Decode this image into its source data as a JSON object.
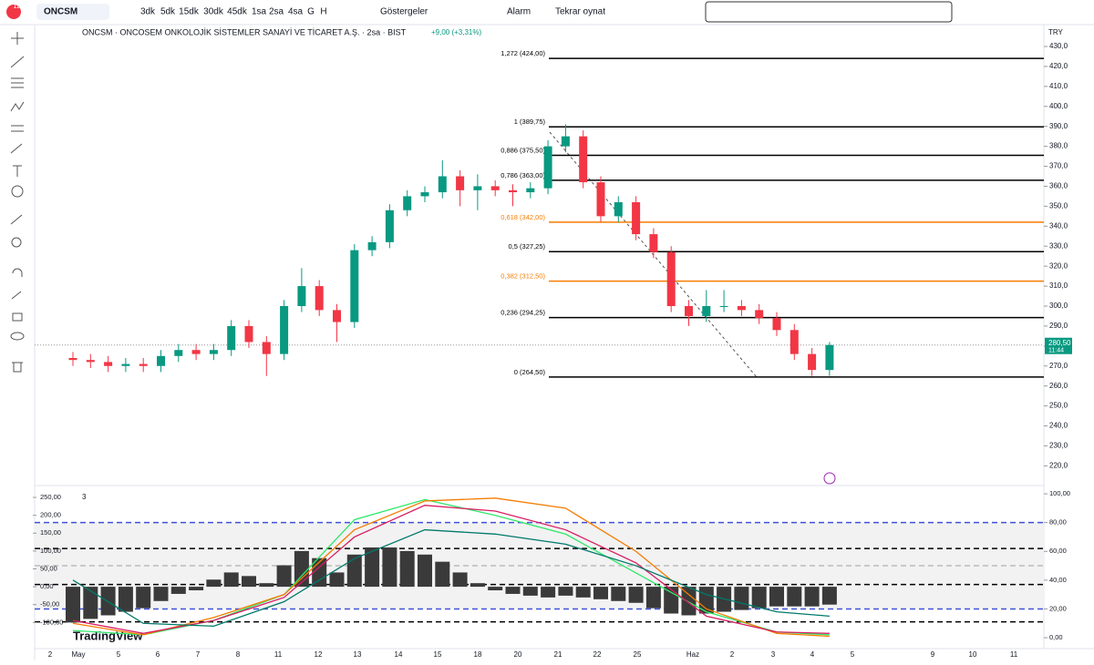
{
  "toolbar": {
    "symbol": "ONCSM",
    "badge": "11",
    "intervals": [
      "3dk",
      "5dk",
      "15dk",
      "30dk",
      "45dk",
      "1sa",
      "2sa",
      "4sa",
      "G",
      "H"
    ],
    "indicators": "Göstergeler",
    "alarm": "Alarm",
    "replay": "Tekrar oynat"
  },
  "legend": {
    "title": "ONCSM · ONCOSEM ONKOLOJİK SİSTEMLER SANAYİ VE TİCARET A.Ş. · 2sa · BIST",
    "change": "+9,00 (+3,31%)"
  },
  "brand": "TradingView",
  "chart_data": [
    {
      "type": "candlestick",
      "currency": "TRY",
      "up_color": "#089981",
      "down_color": "#f23645",
      "ohlc": [
        [
          274,
          277,
          270,
          273
        ],
        [
          273,
          276,
          269,
          272
        ],
        [
          272,
          275,
          267,
          270
        ],
        [
          270,
          274,
          267,
          271
        ],
        [
          271,
          274,
          267,
          270
        ],
        [
          270,
          278,
          267,
          275
        ],
        [
          275,
          281,
          272,
          278
        ],
        [
          278,
          281,
          273,
          276
        ],
        [
          276,
          281,
          273,
          278
        ],
        [
          278,
          293,
          275,
          290
        ],
        [
          290,
          293,
          279,
          282
        ],
        [
          282,
          285,
          265,
          276
        ],
        [
          276,
          303,
          273,
          300
        ],
        [
          300,
          319,
          297,
          310
        ],
        [
          310,
          313,
          295,
          298
        ],
        [
          298,
          301,
          282,
          292
        ],
        [
          292,
          331,
          289,
          328
        ],
        [
          328,
          335,
          325,
          332
        ],
        [
          332,
          351,
          329,
          348
        ],
        [
          348,
          358,
          345,
          355
        ],
        [
          355,
          360,
          352,
          357
        ],
        [
          357,
          373,
          354,
          365
        ],
        [
          365,
          368,
          350,
          358
        ],
        [
          358,
          366,
          348,
          360
        ],
        [
          360,
          363,
          355,
          358
        ],
        [
          358,
          361,
          350,
          357
        ],
        [
          357,
          362,
          354,
          359
        ],
        [
          359,
          383,
          356,
          380
        ],
        [
          380,
          391,
          377,
          385
        ],
        [
          385,
          388,
          359,
          362
        ],
        [
          362,
          365,
          342,
          345
        ],
        [
          345,
          355,
          342,
          352
        ],
        [
          352,
          355,
          333,
          336
        ],
        [
          336,
          339,
          324,
          327
        ],
        [
          327,
          330,
          297,
          300
        ],
        [
          300,
          303,
          290,
          295
        ],
        [
          295,
          308,
          292,
          300
        ],
        [
          300,
          308,
          297,
          300
        ],
        [
          300,
          303,
          295,
          298
        ],
        [
          298,
          301,
          291,
          294
        ],
        [
          294,
          297,
          285,
          288
        ],
        [
          288,
          291,
          273,
          276
        ],
        [
          276,
          279,
          265,
          268
        ],
        [
          268,
          282,
          265,
          280.5
        ]
      ],
      "ylim": [
        211.5,
        440.5
      ],
      "yticks": [
        {
          "value": 430,
          "label": "430,0"
        },
        {
          "value": 420,
          "label": "420,0"
        },
        {
          "value": 410,
          "label": "410,0"
        },
        {
          "value": 400,
          "label": "400,0"
        },
        {
          "value": 390,
          "label": "390,0"
        },
        {
          "value": 380,
          "label": "380,0"
        },
        {
          "value": 370,
          "label": "370,0"
        },
        {
          "value": 360,
          "label": "360,0"
        },
        {
          "value": 350,
          "label": "350,0"
        },
        {
          "value": 340,
          "label": "340,0"
        },
        {
          "value": 330,
          "label": "330,0"
        },
        {
          "value": 320,
          "label": "320,0"
        },
        {
          "value": 310,
          "label": "310,0"
        },
        {
          "value": 300,
          "label": "300,0"
        },
        {
          "value": 290,
          "label": "290,0"
        },
        {
          "value": 280,
          "label": "280,0"
        },
        {
          "value": 270,
          "label": "270,0"
        },
        {
          "value": 260,
          "label": "260,0"
        },
        {
          "value": 250,
          "label": "250,0"
        },
        {
          "value": 240,
          "label": "240,0"
        },
        {
          "value": 230,
          "label": "230,0"
        },
        {
          "value": 220,
          "label": "220,0"
        }
      ],
      "last_price": {
        "value": 280.5,
        "label": "280,50"
      },
      "countdown": "11:44",
      "fib_levels": [
        {
          "label": "1,272 (424,00)",
          "value": 424,
          "color": "#000000"
        },
        {
          "label": "1 (389,75)",
          "value": 389.75,
          "color": "#000000"
        },
        {
          "label": "0,886 (375,50)",
          "value": 375.5,
          "color": "#000000"
        },
        {
          "label": "0,786 (363,00)",
          "value": 363,
          "color": "#000000"
        },
        {
          "label": "0,618 (342,00)",
          "value": 342,
          "color": "#f57c00"
        },
        {
          "label": "0,5 (327,25)",
          "value": 327.25,
          "color": "#000000"
        },
        {
          "label": "0,382 (312,50)",
          "value": 312.5,
          "color": "#f57c00"
        },
        {
          "label": "0,236 (294,25)",
          "value": 294.25,
          "color": "#000000"
        },
        {
          "label": "0 (264,50)",
          "value": 264.5,
          "color": "#000000"
        }
      ],
      "x_labels": [
        "2",
        "May",
        "5",
        "6",
        "7",
        "8",
        "11",
        "12",
        "13",
        "14",
        "15",
        "18",
        "20",
        "21",
        "22",
        "25",
        "Haz",
        "2",
        "3",
        "4",
        "5",
        "9",
        "10",
        "11"
      ]
    },
    {
      "type": "histogram-line",
      "indicator_count": "3",
      "histogram": {
        "color": "#3a3a3a",
        "values": [
          -100,
          -90,
          -80,
          -70,
          -60,
          -40,
          -20,
          -10,
          20,
          40,
          30,
          10,
          60,
          100,
          80,
          40,
          90,
          110,
          110,
          100,
          90,
          70,
          40,
          10,
          -10,
          -20,
          -25,
          -30,
          -25,
          -30,
          -35,
          -40,
          -45,
          -60,
          -75,
          -80,
          -75,
          -70,
          -65,
          -60,
          -55,
          -55,
          -55,
          -50
        ]
      },
      "ylim": [
        -168,
        273
      ],
      "yticks": [
        {
          "value": 250,
          "label": "250,00"
        },
        {
          "value": 200,
          "label": "200,00"
        },
        {
          "value": 150,
          "label": "150,00"
        },
        {
          "value": 100,
          "label": "100,00"
        },
        {
          "value": 50,
          "label": "50,00"
        },
        {
          "value": 0,
          "label": "0,00"
        },
        {
          "value": -50,
          "label": "-50,00"
        },
        {
          "value": -100,
          "label": "-100,00"
        }
      ],
      "y2lim": [
        -6.3,
        103.2
      ],
      "y2ticks": [
        {
          "value": 100,
          "label": "100,00"
        },
        {
          "value": 80,
          "label": "80,00"
        },
        {
          "value": 60,
          "label": "60,00"
        },
        {
          "value": 40,
          "label": "40,00"
        },
        {
          "value": 20,
          "label": "20,00"
        },
        {
          "value": 0,
          "label": "0,00"
        }
      ],
      "levels": [
        {
          "value": 80,
          "color": "#3f51d8"
        },
        {
          "value": 62,
          "color": "#000000"
        },
        {
          "value": 50,
          "color": "#bbbbbb"
        },
        {
          "value": 37,
          "color": "#000000"
        },
        {
          "value": 20,
          "color": "#3f51d8"
        },
        {
          "value": 11,
          "color": "#000000"
        }
      ],
      "x": [
        0,
        4,
        8,
        12,
        16,
        20,
        24,
        28,
        32,
        36,
        40,
        43
      ],
      "series": [
        {
          "color": "#2ee86a",
          "axis": "y2",
          "values": [
            5,
            2,
            12,
            30,
            82,
            96,
            85,
            72,
            45,
            18,
            4,
            2
          ]
        },
        {
          "color": "#f57c00",
          "axis": "y2",
          "values": [
            10,
            2,
            14,
            30,
            75,
            95,
            97,
            90,
            60,
            20,
            3,
            1
          ]
        },
        {
          "color": "#d81b60",
          "axis": "y2",
          "values": [
            12,
            3,
            12,
            28,
            70,
            92,
            88,
            75,
            52,
            15,
            4,
            3
          ]
        },
        {
          "color": "#00796b",
          "axis": "y2",
          "values": [
            40,
            10,
            8,
            25,
            55,
            75,
            72,
            65,
            50,
            30,
            18,
            15
          ]
        }
      ]
    }
  ]
}
